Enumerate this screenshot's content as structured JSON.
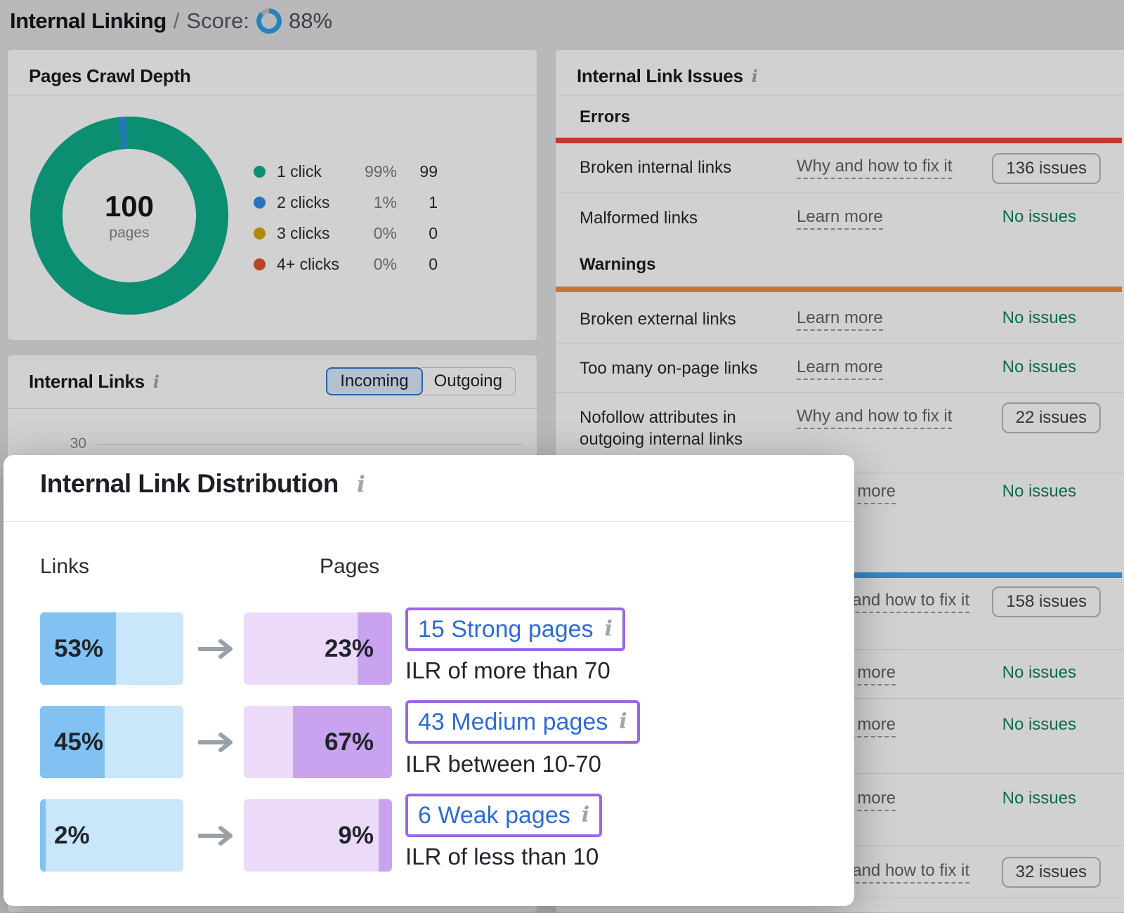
{
  "header": {
    "title": "Internal Linking",
    "separator": "/",
    "score_label": "Score:",
    "score_value": "88%",
    "score_color": "#2f9fe8"
  },
  "crawl_depth_panel": {
    "title": "Pages Crawl Depth",
    "total": "100",
    "total_label": "pages",
    "legend": [
      {
        "label": "1 click",
        "percent": "99%",
        "count": "99",
        "color": "#0fae8c"
      },
      {
        "label": "2 clicks",
        "percent": "1%",
        "count": "1",
        "color": "#2f8fe8"
      },
      {
        "label": "3 clicks",
        "percent": "0%",
        "count": "0",
        "color": "#d9a514"
      },
      {
        "label": "4+ clicks",
        "percent": "0%",
        "count": "0",
        "color": "#e25230"
      }
    ]
  },
  "internal_links_panel": {
    "title": "Internal Links",
    "toggle": {
      "incoming": "Incoming",
      "outgoing": "Outgoing",
      "selected": "Incoming"
    },
    "axis_tick": "30"
  },
  "issues_panel": {
    "title": "Internal Link Issues",
    "errors_header": "Errors",
    "errors_color": "#f04438",
    "warnings_header": "Warnings",
    "warnings_color": "#f5913d",
    "third_section_color": "#42a4f5",
    "rows": {
      "broken_internal": {
        "label": "Broken internal links",
        "link": "Why and how to fix it",
        "value": "136 issues"
      },
      "malformed": {
        "label": "Malformed links",
        "link": "Learn more",
        "value": "No issues"
      },
      "broken_external": {
        "label": "Broken external links",
        "link": "Learn more",
        "value": "No issues"
      },
      "too_many": {
        "label": "Too many on-page links",
        "link": "Learn more",
        "value": "No issues"
      },
      "nofollow": {
        "label": "Nofollow attributes in outgoing internal links",
        "link": "Why and how to fix it",
        "value": "22 issues"
      },
      "hidden_row_1": {
        "link": "Learn more",
        "value": "No issues"
      },
      "hidden_row_2": {
        "link": "Why and how to fix it",
        "value": "158 issues"
      },
      "hidden_row_3": {
        "link": "Learn more",
        "value": "No issues"
      },
      "hidden_row_4": {
        "link": "Learn more",
        "value": "No issues"
      },
      "hidden_row_5": {
        "link": "Learn more",
        "value": "No issues"
      },
      "hidden_row_6": {
        "link": "Why and how to fix it",
        "value": "32 issues"
      }
    }
  },
  "modal": {
    "title": "Internal Link Distribution",
    "columns": {
      "links": "Links",
      "pages": "Pages"
    },
    "rows": [
      {
        "links_percent": "53%",
        "links_value": 53,
        "pages_percent": "23%",
        "pages_value": 23,
        "link_text": "15 Strong pages",
        "description": "ILR of more than 70"
      },
      {
        "links_percent": "45%",
        "links_value": 45,
        "pages_percent": "67%",
        "pages_value": 67,
        "link_text": "43 Medium pages",
        "description": "ILR between 10-70"
      },
      {
        "links_percent": "2%",
        "links_value": 2,
        "pages_percent": "9%",
        "pages_value": 9,
        "link_text": "6 Weak pages",
        "description": "ILR of less than 10"
      }
    ],
    "colors": {
      "links_dark": "#82c2f3",
      "links_light": "#c9e6fb",
      "pages_light": "#ecdaf9",
      "pages_dark": "#c9a3f0",
      "accent_border": "#9b66e8"
    }
  },
  "chart_data": [
    {
      "type": "pie",
      "title": "Pages Crawl Depth",
      "categories": [
        "1 click",
        "2 clicks",
        "3 clicks",
        "4+ clicks"
      ],
      "values": [
        99,
        1,
        0,
        0
      ],
      "total_label": "100 pages",
      "legend_position": "right"
    },
    {
      "type": "bar",
      "title": "Internal Link Distribution",
      "categories": [
        "Strong pages (ILR > 70)",
        "Medium pages (ILR 10-70)",
        "Weak pages (ILR < 10)"
      ],
      "series": [
        {
          "name": "Links",
          "values": [
            53,
            45,
            2
          ]
        },
        {
          "name": "Pages",
          "values": [
            23,
            67,
            9
          ]
        }
      ],
      "page_counts": [
        15,
        43,
        6
      ]
    }
  ]
}
